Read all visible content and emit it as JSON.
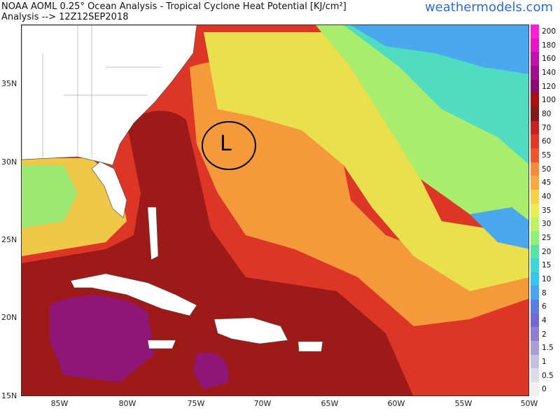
{
  "header": {
    "title": "NOAA AOML 0.25° Ocean Analysis - Tropical Cyclone Heat Potential [KJ/cm²]",
    "analysis": "Analysis --> 12Z12SEP2018",
    "brand": "weathermodels.com"
  },
  "map": {
    "lat_labels": [
      "35N",
      "30N",
      "25N",
      "20N",
      "15N"
    ],
    "lon_labels": [
      "85W",
      "80W",
      "75W",
      "70W",
      "65W",
      "60W",
      "55W",
      "50W"
    ],
    "low_marker": "L"
  },
  "colorbar": {
    "labels": [
      "200",
      "180",
      "160",
      "140",
      "120",
      "100",
      "80",
      "70",
      "60",
      "55",
      "50",
      "45",
      "40",
      "35",
      "30",
      "25",
      "20",
      "15",
      "10",
      "8",
      "6",
      "4",
      "2",
      "1.5",
      "1",
      "0.5",
      "0"
    ],
    "colors": [
      "#ff1fd6",
      "#e816c2",
      "#c012a8",
      "#a00e8e",
      "#8a0b6e",
      "#a81010",
      "#7e1c1c",
      "#c62020",
      "#e23a26",
      "#ee5530",
      "#f58a3a",
      "#f7a940",
      "#f6d24a",
      "#e9ee55",
      "#c0f063",
      "#8ff07a",
      "#58e3a5",
      "#3fd6d6",
      "#3bc4ee",
      "#49a3f0",
      "#5a7ee6",
      "#7367d0",
      "#8e80cf",
      "#aaa0d8",
      "#c6c0e1",
      "#dedbe9",
      "#f0f0f0"
    ]
  }
}
